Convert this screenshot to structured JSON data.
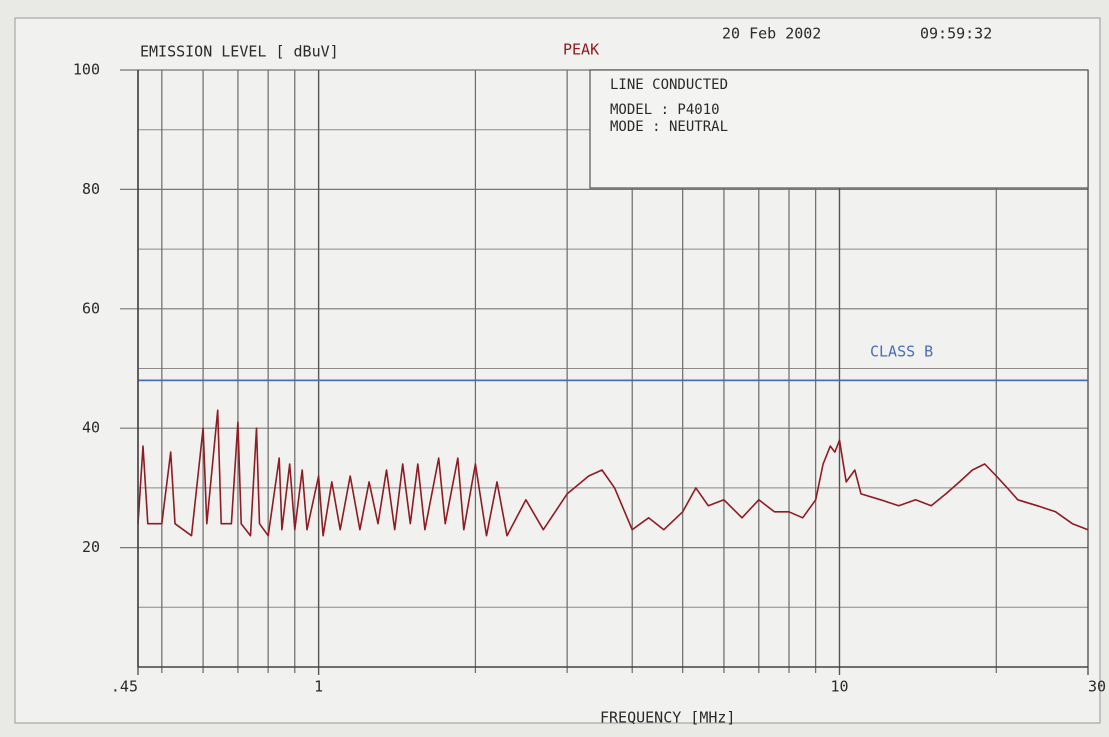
{
  "chart_data": {
    "type": "line",
    "title": "EMISSION LEVEL [ dBuV]",
    "date": "20 Feb 2002",
    "time": "09:59:32",
    "info": [
      "LINE CONDUCTED",
      "MODEL : P4010",
      "MODE : NEUTRAL"
    ],
    "xlabel": "FREQUENCY [MHz]",
    "xscale": "log",
    "xlim": [
      0.45,
      30
    ],
    "xticks": [
      {
        "value": 0.45,
        "label": ".45"
      },
      1,
      10,
      30
    ],
    "xminor_ticks": [
      0.5,
      0.6,
      0.7,
      0.8,
      0.9,
      2,
      3,
      4,
      5,
      6,
      7,
      8,
      9,
      20
    ],
    "ylim": [
      0,
      100
    ],
    "yticks": [
      20,
      40,
      60,
      80,
      100
    ],
    "yminor_ticks": [
      0,
      10,
      30,
      50,
      70,
      90
    ],
    "grid": true,
    "series": [
      {
        "name": "PEAK",
        "color": "#8e1c22",
        "x": [
          0.45,
          0.46,
          0.47,
          0.5,
          0.52,
          0.53,
          0.57,
          0.6,
          0.61,
          0.64,
          0.65,
          0.68,
          0.7,
          0.71,
          0.74,
          0.76,
          0.77,
          0.8,
          0.84,
          0.85,
          0.88,
          0.9,
          0.93,
          0.95,
          1.0,
          1.02,
          1.06,
          1.1,
          1.15,
          1.2,
          1.25,
          1.3,
          1.35,
          1.4,
          1.45,
          1.5,
          1.55,
          1.6,
          1.7,
          1.75,
          1.85,
          1.9,
          2.0,
          2.1,
          2.2,
          2.3,
          2.5,
          2.7,
          3.0,
          3.3,
          3.5,
          3.7,
          4.0,
          4.3,
          4.6,
          5.0,
          5.3,
          5.6,
          6.0,
          6.5,
          7.0,
          7.5,
          8.0,
          8.5,
          9.0,
          9.3,
          9.6,
          9.8,
          10.0,
          10.3,
          10.7,
          11,
          12,
          13,
          14,
          15,
          16,
          17,
          18,
          19,
          20,
          21,
          22,
          24,
          26,
          28,
          30
        ],
        "values": [
          24,
          37,
          24,
          24,
          36,
          24,
          22,
          40,
          24,
          43,
          24,
          24,
          41,
          24,
          22,
          40,
          24,
          22,
          35,
          23,
          34,
          23,
          33,
          23,
          32,
          22,
          31,
          23,
          32,
          23,
          31,
          24,
          33,
          23,
          34,
          24,
          34,
          23,
          35,
          24,
          35,
          23,
          34,
          22,
          31,
          22,
          28,
          23,
          29,
          32,
          33,
          30,
          23,
          25,
          23,
          26,
          30,
          27,
          28,
          25,
          28,
          26,
          26,
          25,
          28,
          34,
          37,
          36,
          38,
          31,
          33,
          29,
          28,
          27,
          28,
          27,
          29,
          31,
          33,
          34,
          32,
          30,
          28,
          27,
          26,
          24,
          23
        ]
      },
      {
        "name": "CLASS B",
        "color": "#4a6db4",
        "x": [
          0.45,
          30
        ],
        "values": [
          48,
          48
        ]
      }
    ]
  }
}
